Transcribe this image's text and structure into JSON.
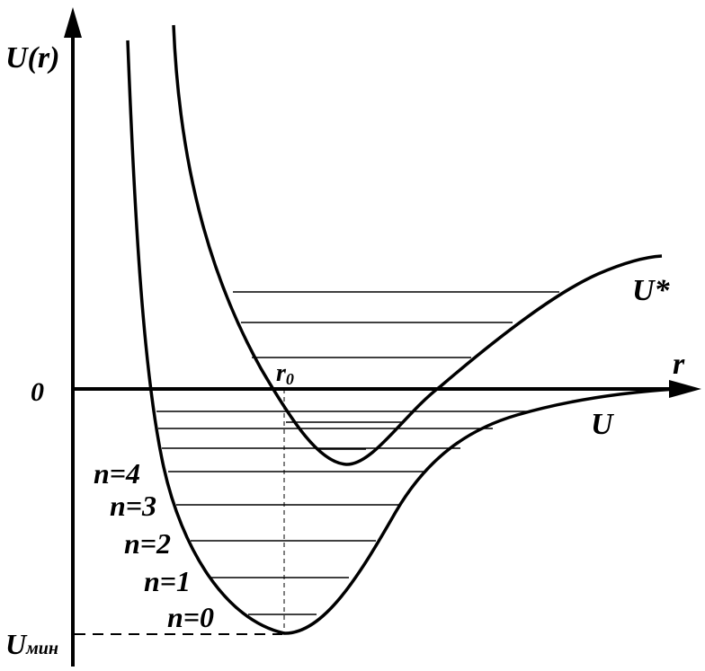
{
  "axes": {
    "y_label": "U(r)",
    "x_label": "r",
    "origin_label": "0",
    "r0_label_main": "r",
    "r0_label_sub": "0",
    "umin_label_main": "U",
    "umin_label_sub": "мин"
  },
  "curves": {
    "ground_label": "U",
    "excited_label": "U*"
  },
  "levels": [
    {
      "label": "n=0"
    },
    {
      "label": "n=1"
    },
    {
      "label": "n=2"
    },
    {
      "label": "n=3"
    },
    {
      "label": "n=4"
    }
  ],
  "colors": {
    "ink": "#000000",
    "background": "#ffffff"
  }
}
